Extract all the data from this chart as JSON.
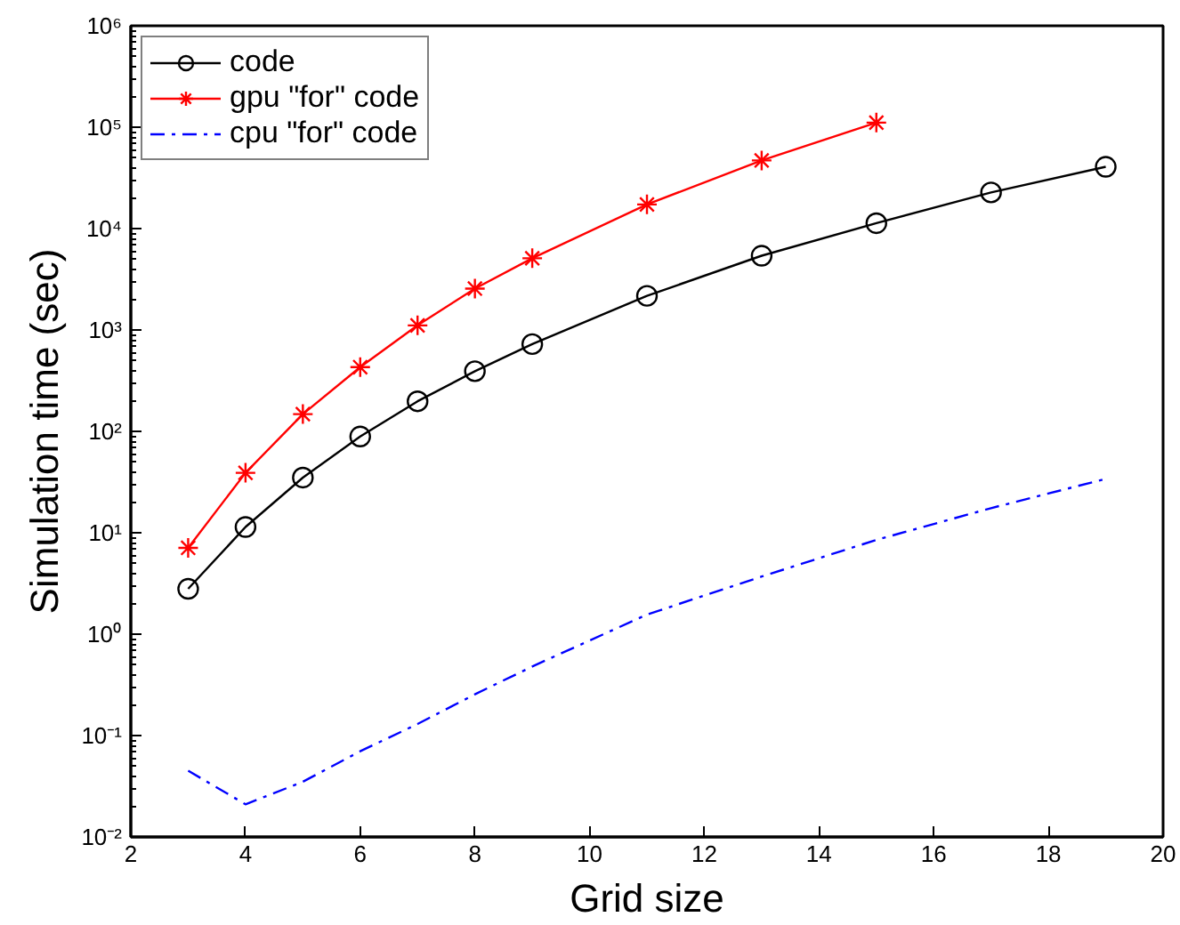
{
  "chart_data": {
    "type": "line",
    "xlabel": "Grid size",
    "ylabel": "Simulation time (sec)",
    "log": "y",
    "xlim": [
      2,
      20
    ],
    "xticks": [
      2,
      4,
      6,
      8,
      10,
      12,
      14,
      16,
      18,
      20
    ],
    "ylim": [
      0.01,
      1000000
    ],
    "yticks": [
      {
        "value": 0.01,
        "label": "10⁻²"
      },
      {
        "value": 0.1,
        "label": "10⁻¹"
      },
      {
        "value": 1,
        "label": "10⁰"
      },
      {
        "value": 10,
        "label": "10¹"
      },
      {
        "value": 100,
        "label": "10²"
      },
      {
        "value": 1000,
        "label": "10³"
      },
      {
        "value": 10000,
        "label": "10⁴"
      },
      {
        "value": 100000,
        "label": "10⁵"
      },
      {
        "value": 1000000,
        "label": "10⁶"
      }
    ],
    "grid": false,
    "legend": "top left",
    "series": [
      {
        "name": "code",
        "color": "#000000",
        "marker": "circle",
        "line_style": "solid",
        "x": [
          3,
          4,
          5,
          6,
          7,
          8,
          9,
          11,
          13,
          15,
          17,
          19
        ],
        "values": [
          2.8,
          11.4,
          35,
          89,
          198,
          392,
          725,
          2170,
          5400,
          11300,
          22700,
          40700
        ]
      },
      {
        "name": "gpu \"for\" code",
        "color": "#ff0000",
        "marker": "cross",
        "line_style": "solid",
        "x": [
          3,
          4,
          5,
          6,
          7,
          8,
          9,
          11,
          13,
          15
        ],
        "values": [
          7.1,
          39,
          148,
          430,
          1110,
          2560,
          5100,
          17300,
          47000,
          111000
        ]
      },
      {
        "name": "cpu \"for\" code",
        "color": "#0000ff",
        "marker": "none",
        "line_style": "dashdot",
        "x": [
          3,
          4,
          5,
          6,
          7,
          8,
          9,
          11,
          13,
          15,
          17,
          19
        ],
        "values": [
          0.045,
          0.021,
          0.035,
          0.07,
          0.13,
          0.255,
          0.48,
          1.56,
          3.7,
          8.5,
          17.5,
          34
        ]
      }
    ]
  }
}
